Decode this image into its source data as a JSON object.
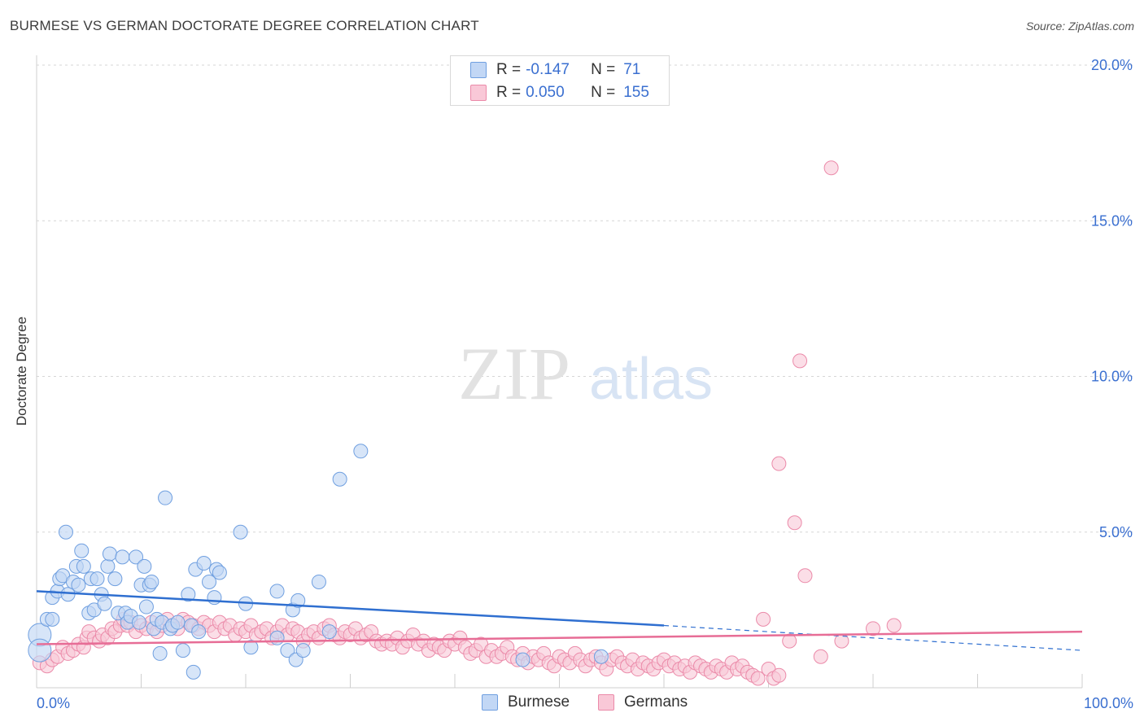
{
  "title": "BURMESE VS GERMAN DOCTORATE DEGREE CORRELATION CHART",
  "source": "Source: ZipAtlas.com",
  "watermark": {
    "zip": "ZIP",
    "atlas": "atlas"
  },
  "legend": {
    "rows": [
      {
        "r_label": "R =",
        "r_value": "-0.147",
        "n_label": "N =",
        "n_value": "71"
      },
      {
        "r_label": "R =",
        "r_value": "0.050",
        "n_label": "N =",
        "n_value": "155"
      }
    ]
  },
  "colors": {
    "burmese_fill": "#c2d7f5",
    "burmese_stroke": "#6f9fe0",
    "burmese_line": "#2f6fd0",
    "german_fill": "#f9c8d7",
    "german_stroke": "#eb8aa9",
    "german_line": "#e76d96",
    "axis_label": "#3a6fd0",
    "grid": "#d6d6d6"
  },
  "chart_data": {
    "type": "scatter",
    "title": "BURMESE VS GERMAN DOCTORATE DEGREE CORRELATION CHART",
    "xlabel": "",
    "ylabel": "Doctorate Degree",
    "xlim": [
      0,
      100
    ],
    "ylim": [
      0,
      20
    ],
    "x_tick_labels": [
      "0.0%",
      "100.0%"
    ],
    "y_ticks": [
      5,
      10,
      15,
      20
    ],
    "y_tick_labels": [
      "5.0%",
      "10.0%",
      "15.0%",
      "20.0%"
    ],
    "series": [
      {
        "name": "Burmese",
        "r": -0.147,
        "n": 71,
        "trend": {
          "x0": 0,
          "y0": 3.1,
          "x1": 60,
          "y1": 2.0,
          "dashed_to_x": 100,
          "dashed_to_y": 1.2
        },
        "points": [
          [
            0.3,
            1.7
          ],
          [
            0.3,
            1.2
          ],
          [
            1,
            2.2
          ],
          [
            1.5,
            2.2
          ],
          [
            1.5,
            2.9
          ],
          [
            2,
            3.1
          ],
          [
            2.2,
            3.5
          ],
          [
            2.5,
            3.6
          ],
          [
            3,
            3.0
          ],
          [
            2.8,
            5.0
          ],
          [
            3.5,
            3.4
          ],
          [
            3.8,
            3.9
          ],
          [
            4,
            3.3
          ],
          [
            4.3,
            4.4
          ],
          [
            4.5,
            3.9
          ],
          [
            5,
            2.4
          ],
          [
            5.2,
            3.5
          ],
          [
            5.5,
            2.5
          ],
          [
            5.8,
            3.5
          ],
          [
            6.2,
            3.0
          ],
          [
            6.5,
            2.7
          ],
          [
            6.8,
            3.9
          ],
          [
            7,
            4.3
          ],
          [
            7.5,
            3.5
          ],
          [
            7.8,
            2.4
          ],
          [
            8.2,
            4.2
          ],
          [
            8.5,
            2.4
          ],
          [
            8.7,
            2.1
          ],
          [
            9,
            2.3
          ],
          [
            9.5,
            4.2
          ],
          [
            9.8,
            2.1
          ],
          [
            10,
            3.3
          ],
          [
            10.3,
            3.9
          ],
          [
            10.5,
            2.6
          ],
          [
            10.8,
            3.3
          ],
          [
            11,
            3.4
          ],
          [
            11.2,
            1.9
          ],
          [
            11.5,
            2.2
          ],
          [
            11.8,
            1.1
          ],
          [
            12,
            2.1
          ],
          [
            12.3,
            6.1
          ],
          [
            12.8,
            1.9
          ],
          [
            13,
            2.0
          ],
          [
            13.5,
            2.1
          ],
          [
            14,
            1.2
          ],
          [
            14.5,
            3.0
          ],
          [
            14.8,
            2.0
          ],
          [
            15,
            0.5
          ],
          [
            15.2,
            3.8
          ],
          [
            15.5,
            1.8
          ],
          [
            16,
            4.0
          ],
          [
            16.5,
            3.4
          ],
          [
            17,
            2.9
          ],
          [
            17.2,
            3.8
          ],
          [
            17.5,
            3.7
          ],
          [
            19.5,
            5.0
          ],
          [
            20,
            2.7
          ],
          [
            20.5,
            1.3
          ],
          [
            23,
            3.1
          ],
          [
            23,
            1.6
          ],
          [
            24,
            1.2
          ],
          [
            24.5,
            2.5
          ],
          [
            24.8,
            0.9
          ],
          [
            25,
            2.8
          ],
          [
            25.5,
            1.2
          ],
          [
            27,
            3.4
          ],
          [
            29,
            6.7
          ],
          [
            31,
            7.6
          ],
          [
            46.5,
            0.9
          ],
          [
            54,
            1.0
          ],
          [
            28,
            1.8
          ]
        ]
      },
      {
        "name": "Germans",
        "r": 0.05,
        "n": 155,
        "trend": {
          "x0": 0,
          "y0": 1.4,
          "x1": 100,
          "y1": 1.8
        },
        "points": [
          [
            0.3,
            0.8
          ],
          [
            1,
            0.7
          ],
          [
            1.5,
            0.9
          ],
          [
            2,
            1.0
          ],
          [
            2.5,
            1.3
          ],
          [
            3,
            1.1
          ],
          [
            3.5,
            1.2
          ],
          [
            4,
            1.4
          ],
          [
            4.5,
            1.3
          ],
          [
            4.8,
            1.6
          ],
          [
            5,
            1.8
          ],
          [
            5.5,
            1.6
          ],
          [
            6,
            1.5
          ],
          [
            6.3,
            1.7
          ],
          [
            6.8,
            1.6
          ],
          [
            7.2,
            1.9
          ],
          [
            7.5,
            1.8
          ],
          [
            8,
            2.0
          ],
          [
            8.3,
            2.2
          ],
          [
            8.7,
            2.0
          ],
          [
            9,
            2.1
          ],
          [
            9.5,
            1.8
          ],
          [
            10,
            2.0
          ],
          [
            10.5,
            1.9
          ],
          [
            11,
            2.1
          ],
          [
            11.5,
            1.8
          ],
          [
            12,
            2.0
          ],
          [
            12.5,
            2.2
          ],
          [
            13,
            2.0
          ],
          [
            13.5,
            1.9
          ],
          [
            14,
            2.2
          ],
          [
            14.5,
            2.1
          ],
          [
            15,
            2.0
          ],
          [
            15.5,
            1.9
          ],
          [
            16,
            2.1
          ],
          [
            16.5,
            2.0
          ],
          [
            17,
            1.8
          ],
          [
            17.5,
            2.1
          ],
          [
            18,
            1.9
          ],
          [
            18.5,
            2.0
          ],
          [
            19,
            1.7
          ],
          [
            19.5,
            1.9
          ],
          [
            20,
            1.8
          ],
          [
            20.5,
            2.0
          ],
          [
            21,
            1.7
          ],
          [
            21.5,
            1.8
          ],
          [
            22,
            1.9
          ],
          [
            22.5,
            1.6
          ],
          [
            23,
            1.8
          ],
          [
            23.5,
            2.0
          ],
          [
            24,
            1.7
          ],
          [
            24.5,
            1.9
          ],
          [
            25,
            1.8
          ],
          [
            25.5,
            1.5
          ],
          [
            26,
            1.7
          ],
          [
            26.5,
            1.8
          ],
          [
            27,
            1.6
          ],
          [
            27.5,
            1.9
          ],
          [
            28,
            2.0
          ],
          [
            28.5,
            1.7
          ],
          [
            29,
            1.6
          ],
          [
            29.5,
            1.8
          ],
          [
            30,
            1.7
          ],
          [
            30.5,
            1.9
          ],
          [
            31,
            1.6
          ],
          [
            31.5,
            1.7
          ],
          [
            32,
            1.8
          ],
          [
            32.5,
            1.5
          ],
          [
            33,
            1.4
          ],
          [
            33.5,
            1.5
          ],
          [
            34,
            1.4
          ],
          [
            34.5,
            1.6
          ],
          [
            35,
            1.3
          ],
          [
            35.5,
            1.5
          ],
          [
            36,
            1.7
          ],
          [
            36.5,
            1.4
          ],
          [
            37,
            1.5
          ],
          [
            37.5,
            1.2
          ],
          [
            38,
            1.4
          ],
          [
            38.5,
            1.3
          ],
          [
            39,
            1.2
          ],
          [
            39.5,
            1.5
          ],
          [
            40,
            1.4
          ],
          [
            40.5,
            1.6
          ],
          [
            41,
            1.3
          ],
          [
            41.5,
            1.1
          ],
          [
            42,
            1.2
          ],
          [
            42.5,
            1.4
          ],
          [
            43,
            1.0
          ],
          [
            43.5,
            1.2
          ],
          [
            44,
            1.0
          ],
          [
            44.5,
            1.1
          ],
          [
            45,
            1.3
          ],
          [
            45.5,
            1.0
          ],
          [
            46,
            0.9
          ],
          [
            46.5,
            1.1
          ],
          [
            47,
            0.8
          ],
          [
            47.5,
            1.0
          ],
          [
            48,
            0.9
          ],
          [
            48.5,
            1.1
          ],
          [
            49,
            0.8
          ],
          [
            49.5,
            0.7
          ],
          [
            50,
            1.0
          ],
          [
            50.5,
            0.9
          ],
          [
            51,
            0.8
          ],
          [
            51.5,
            1.1
          ],
          [
            52,
            0.9
          ],
          [
            52.5,
            0.7
          ],
          [
            53,
            0.9
          ],
          [
            53.5,
            1.0
          ],
          [
            54,
            0.8
          ],
          [
            54.5,
            0.6
          ],
          [
            55,
            0.9
          ],
          [
            55.5,
            1.0
          ],
          [
            56,
            0.8
          ],
          [
            56.5,
            0.7
          ],
          [
            57,
            0.9
          ],
          [
            57.5,
            0.6
          ],
          [
            58,
            0.8
          ],
          [
            58.5,
            0.7
          ],
          [
            59,
            0.6
          ],
          [
            59.5,
            0.8
          ],
          [
            60,
            0.9
          ],
          [
            60.5,
            0.7
          ],
          [
            61,
            0.8
          ],
          [
            61.5,
            0.6
          ],
          [
            62,
            0.7
          ],
          [
            62.5,
            0.5
          ],
          [
            63,
            0.8
          ],
          [
            63.5,
            0.7
          ],
          [
            64,
            0.6
          ],
          [
            64.5,
            0.5
          ],
          [
            65,
            0.7
          ],
          [
            65.5,
            0.6
          ],
          [
            66,
            0.5
          ],
          [
            66.5,
            0.8
          ],
          [
            67,
            0.6
          ],
          [
            67.5,
            0.7
          ],
          [
            68,
            0.5
          ],
          [
            68.5,
            0.4
          ],
          [
            69,
            0.3
          ],
          [
            70,
            0.6
          ],
          [
            70.5,
            0.3
          ],
          [
            71,
            0.4
          ],
          [
            69.5,
            2.2
          ],
          [
            72,
            1.5
          ],
          [
            73,
            10.5
          ],
          [
            73.5,
            3.6
          ],
          [
            72.5,
            5.3
          ],
          [
            71,
            7.2
          ],
          [
            76,
            16.7
          ],
          [
            75,
            1.0
          ],
          [
            77,
            1.5
          ],
          [
            80,
            1.9
          ],
          [
            82,
            2.0
          ]
        ]
      }
    ]
  }
}
